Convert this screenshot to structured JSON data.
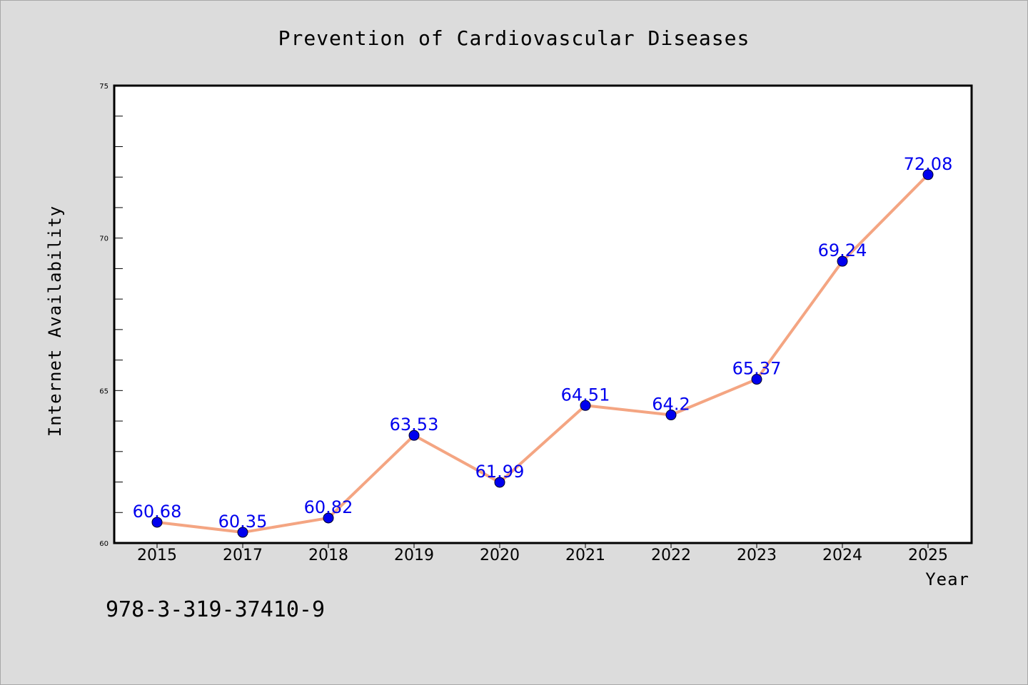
{
  "chart_data": {
    "type": "line",
    "title": "Prevention of Cardiovascular Diseases",
    "xlabel": "Year",
    "ylabel": "Internet Availability",
    "categories": [
      "2015",
      "2017",
      "2018",
      "2019",
      "2020",
      "2021",
      "2022",
      "2023",
      "2024",
      "2025"
    ],
    "series": [
      {
        "values": [
          60.68,
          60.35,
          60.82,
          63.53,
          61.99,
          64.51,
          64.2,
          65.37,
          69.24,
          72.08
        ],
        "labels": [
          "60.68",
          "60.35",
          "60.82",
          "63.53",
          "61.99",
          "64.51",
          "64.2",
          "65.37",
          "69.24",
          "72.08"
        ],
        "line_color": "#f4a582",
        "marker_color": "#0000ee"
      }
    ],
    "ylim": [
      60,
      75
    ],
    "yticks": [
      "60",
      "65",
      "70",
      "75"
    ],
    "grid": false,
    "legend": "none"
  },
  "footer_text": "978-3-319-37410-9",
  "colors": {
    "background": "#dcdcdc",
    "plot_area": "#ffffff",
    "line": "#f4a582",
    "marker": "#0000ee",
    "label": "#0000ee"
  }
}
